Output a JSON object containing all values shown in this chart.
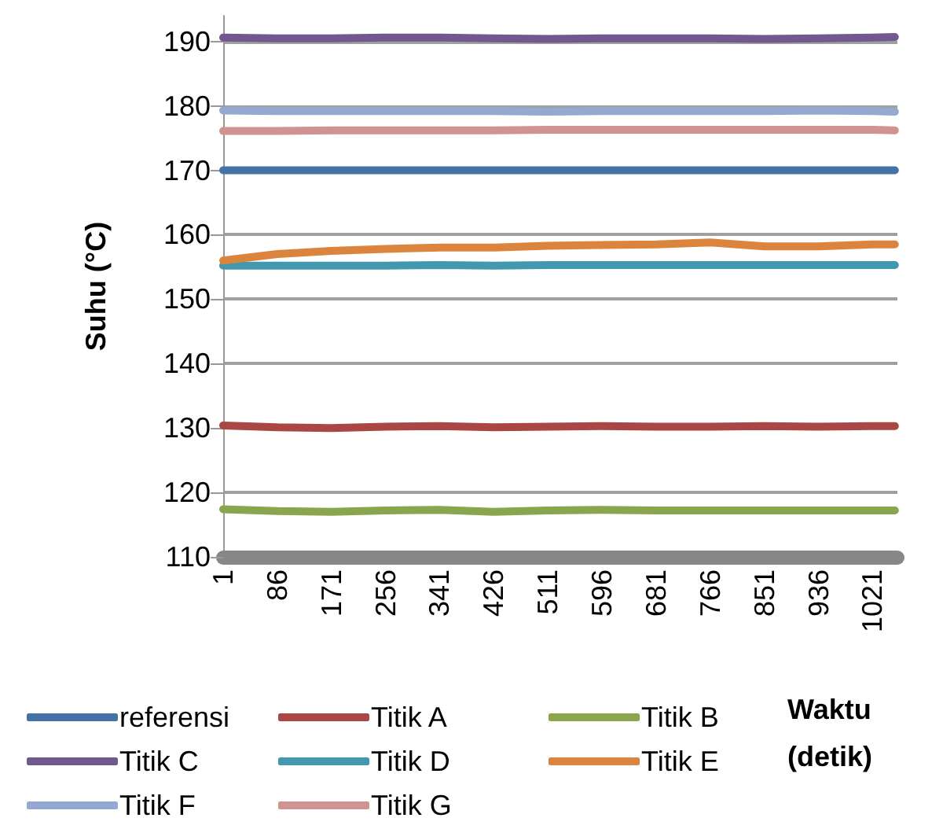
{
  "chart_data": {
    "type": "line",
    "xlabel": "Waktu (detik)",
    "ylabel": "Suhu (°C)",
    "x": [
      1,
      86,
      171,
      256,
      341,
      426,
      511,
      596,
      681,
      766,
      851,
      936,
      1021,
      1056
    ],
    "xlim": [
      1,
      1060
    ],
    "xticks": [
      1,
      86,
      171,
      256,
      341,
      426,
      511,
      596,
      681,
      766,
      851,
      936,
      1021
    ],
    "ylim": [
      110,
      194
    ],
    "yticks": [
      110,
      120,
      130,
      140,
      150,
      160,
      170,
      180,
      190
    ],
    "grid": "y",
    "legend": "bottom",
    "marker": "none",
    "line_style": "solid",
    "series": [
      {
        "name": "referensi",
        "color": "#4572a7",
        "values": [
          170,
          170,
          170,
          170,
          170,
          170,
          170,
          170,
          170,
          170,
          170,
          170,
          170,
          170
        ]
      },
      {
        "name": "Titik A",
        "color": "#aa4643",
        "values": [
          130.4,
          130.1,
          130.0,
          130.2,
          130.3,
          130.1,
          130.2,
          130.3,
          130.2,
          130.2,
          130.3,
          130.2,
          130.3,
          130.3
        ]
      },
      {
        "name": "Titik B",
        "color": "#89a54e",
        "values": [
          117.4,
          117.1,
          117.0,
          117.2,
          117.3,
          117.0,
          117.2,
          117.3,
          117.2,
          117.2,
          117.2,
          117.2,
          117.2,
          117.2
        ]
      },
      {
        "name": "Titik C",
        "color": "#71588f",
        "values": [
          190.6,
          190.5,
          190.5,
          190.6,
          190.6,
          190.5,
          190.4,
          190.5,
          190.5,
          190.5,
          190.4,
          190.5,
          190.6,
          190.7
        ]
      },
      {
        "name": "Titik D",
        "color": "#4198af",
        "values": [
          155.2,
          155.2,
          155.2,
          155.2,
          155.3,
          155.2,
          155.3,
          155.3,
          155.3,
          155.3,
          155.3,
          155.3,
          155.3,
          155.3
        ]
      },
      {
        "name": "Titik E",
        "color": "#db843d",
        "values": [
          156.0,
          157.0,
          157.5,
          157.8,
          158.0,
          158.0,
          158.3,
          158.4,
          158.5,
          158.8,
          158.2,
          158.2,
          158.5,
          158.5
        ]
      },
      {
        "name": "Titik F",
        "color": "#93a9cf",
        "values": [
          179.3,
          179.2,
          179.2,
          179.2,
          179.2,
          179.2,
          179.1,
          179.2,
          179.2,
          179.2,
          179.2,
          179.3,
          179.2,
          179.1
        ]
      },
      {
        "name": "Titik G",
        "color": "#d19392",
        "values": [
          176.1,
          176.1,
          176.2,
          176.2,
          176.2,
          176.2,
          176.3,
          176.3,
          176.3,
          176.3,
          176.3,
          176.3,
          176.3,
          176.2
        ]
      }
    ]
  }
}
